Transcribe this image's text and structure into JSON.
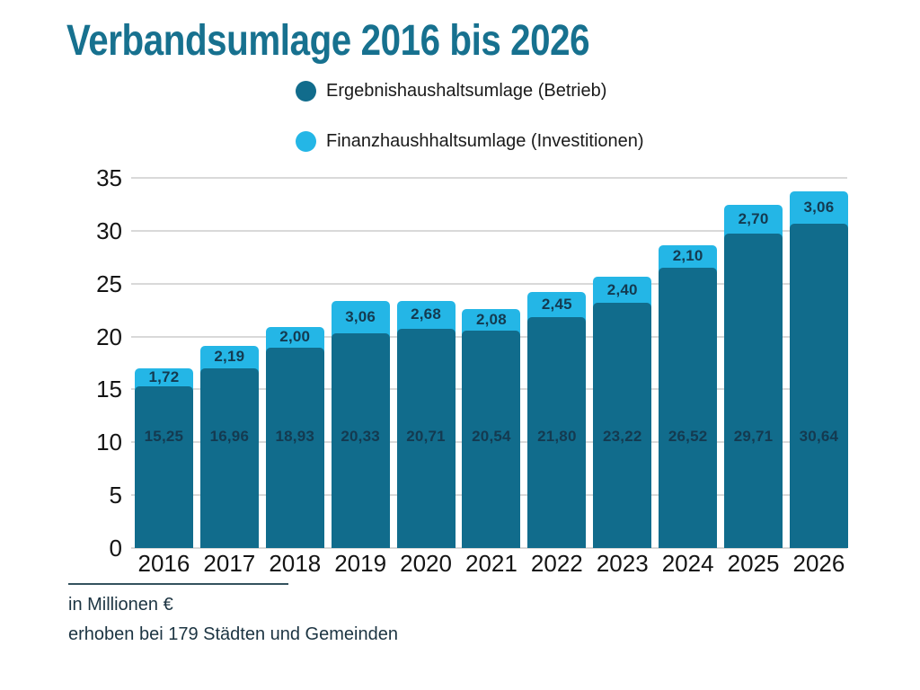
{
  "title": {
    "text": "Verbandsumlage 2016 bis 2026",
    "color": "#17718F"
  },
  "legend": {
    "items": [
      {
        "label": "Ergebnishaushaltsumlage (Betrieb)",
        "color": "#116C8C"
      },
      {
        "label": "Finanzhaushhaltsumlage (Investitionen)",
        "color": "#24B6E6"
      }
    ]
  },
  "chart_data": {
    "type": "bar",
    "stacked": true,
    "title": "Verbandsumlage 2016 bis 2026",
    "xlabel": "",
    "ylabel": "",
    "ylim": [
      0,
      35
    ],
    "yticks": [
      0,
      5,
      10,
      15,
      20,
      25,
      30,
      35
    ],
    "grid": true,
    "legend_position": "top",
    "categories": [
      "2016",
      "2017",
      "2018",
      "2019",
      "2020",
      "2021",
      "2022",
      "2023",
      "2024",
      "2025",
      "2026"
    ],
    "series": [
      {
        "name": "Ergebnishaushaltsumlage (Betrieb)",
        "color": "#116C8C",
        "values": [
          15.25,
          16.96,
          18.93,
          20.33,
          20.71,
          20.54,
          21.8,
          23.22,
          26.52,
          29.71,
          30.64
        ],
        "labels": [
          "15,25",
          "16,96",
          "18,93",
          "20,33",
          "20,71",
          "20,54",
          "21,80",
          "23,22",
          "26,52",
          "29,71",
          "30,64"
        ]
      },
      {
        "name": "Finanzhaushhaltsumlage (Investitionen)",
        "color": "#24B6E6",
        "values": [
          1.72,
          2.19,
          2.0,
          3.06,
          2.68,
          2.08,
          2.45,
          2.4,
          2.1,
          2.7,
          3.06
        ],
        "labels": [
          "1,72",
          "2,19",
          "2,00",
          "3,06",
          "2,68",
          "2,08",
          "2,45",
          "2,40",
          "2,10",
          "2,70",
          "3,06"
        ]
      }
    ],
    "value_label_color": "#143A50",
    "gridline_color": "#D9D9D9",
    "axis_text_color": "#141414"
  },
  "footer": {
    "line1": "in Millionen €",
    "line2": "erhoben bei 179 Städten und Gemeinden"
  }
}
